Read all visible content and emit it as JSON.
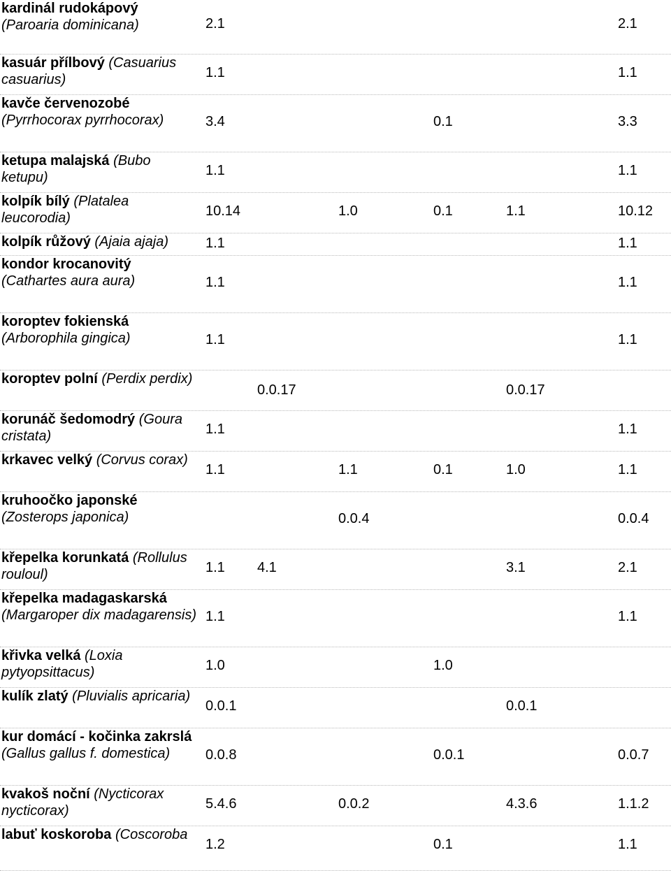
{
  "rows": [
    {
      "name_bold": [
        "kardinál",
        "rudokápový"
      ],
      "name_italic": [
        "(Paroaria",
        "dominicana)"
      ],
      "values": [
        "2.1",
        "",
        "",
        "",
        "",
        "2.1"
      ]
    },
    {
      "name_bold": [
        "kasuár přílbový"
      ],
      "name_italic": [
        "(Casuarius",
        "casuarius)"
      ],
      "values": [
        "1.1",
        "",
        "",
        "",
        "",
        "1.1"
      ]
    },
    {
      "name_bold": [
        "kavče",
        "červenozobé"
      ],
      "name_italic": [
        "(Pyrrhocorax",
        "pyrrhocorax)"
      ],
      "values": [
        "3.4",
        "",
        "",
        "0.1",
        "",
        "3.3"
      ]
    },
    {
      "name_bold": [
        "ketupa malajská"
      ],
      "name_italic": [
        "(Bubo",
        "ketupu)"
      ],
      "values": [
        "1.1",
        "",
        "",
        "",
        "",
        "1.1"
      ]
    },
    {
      "name_bold": [
        "kolpík bílý"
      ],
      "name_italic": [
        "(Platalea",
        "leucorodia)"
      ],
      "values": [
        "10.14",
        "",
        "1.0",
        "0.1",
        "1.1",
        "10.12"
      ]
    },
    {
      "name_bold": [
        "kolpík růžový"
      ],
      "name_italic": [
        "(Ajaia ajaja)"
      ],
      "values": [
        "1.1",
        "",
        "",
        "",
        "",
        "1.1"
      ]
    },
    {
      "name_bold": [
        "kondor",
        "krocanovitý"
      ],
      "name_italic": [
        "(Cathartes aura",
        "aura)"
      ],
      "values": [
        "1.1",
        "",
        "",
        "",
        "",
        "1.1"
      ]
    },
    {
      "name_bold": [
        "koroptev",
        "fokienská"
      ],
      "name_italic": [
        "(Arborophila",
        "gingica)"
      ],
      "values": [
        "1.1",
        "",
        "",
        "",
        "",
        "1.1"
      ]
    },
    {
      "name_bold": [
        "koroptev polní"
      ],
      "name_italic": [
        "(Perdix",
        "perdix)"
      ],
      "values": [
        "",
        "0.0.17",
        "",
        "",
        "0.0.17",
        ""
      ]
    },
    {
      "name_bold": [
        "korunáč šedomodrý"
      ],
      "name_italic": [
        "(Goura",
        "cristata)"
      ],
      "values": [
        "1.1",
        "",
        "",
        "",
        "",
        "1.1"
      ]
    },
    {
      "name_bold": [
        "krkavec velký"
      ],
      "name_italic": [
        "(Corvus",
        "corax)"
      ],
      "values": [
        "1.1",
        "",
        "1.1",
        "0.1",
        "1.0",
        "1.1"
      ]
    },
    {
      "name_bold": [
        "kruhoočko",
        "japonské"
      ],
      "name_italic": [
        "(Zosterops",
        "japonica)"
      ],
      "values": [
        "",
        "",
        "0.0.4",
        "",
        "",
        "0.0.4"
      ]
    },
    {
      "name_bold": [
        "křepelka",
        "korunkatá"
      ],
      "name_italic": [
        "(Rollulus rouloul)"
      ],
      "values": [
        "1.1",
        "4.1",
        "",
        "",
        "3.1",
        "2.1"
      ]
    },
    {
      "name_bold": [
        "křepelka",
        "madagaskarská"
      ],
      "name_italic": [
        "(Margaroper",
        "dix madagarensis)"
      ],
      "values": [
        "1.1",
        "",
        "",
        "",
        "",
        "1.1"
      ]
    },
    {
      "name_bold": [
        "křivka velká"
      ],
      "name_italic": [
        "(Loxia",
        "pytyopsittacus)"
      ],
      "values": [
        "1.0",
        "",
        "",
        "1.0",
        "",
        ""
      ]
    },
    {
      "name_bold": [
        "kulík zlatý"
      ],
      "name_italic": [
        "(Pluvialis",
        "apricaria)"
      ],
      "values": [
        "0.0.1",
        "",
        "",
        "",
        "0.0.1",
        ""
      ]
    },
    {
      "name_bold": [
        "kur domácí - kočinka",
        "zakrslá"
      ],
      "name_italic": [
        "(Gallus gallus f.",
        "domestica)"
      ],
      "values": [
        "0.0.8",
        "",
        "",
        "0.0.1",
        "",
        "0.0.7"
      ]
    },
    {
      "name_bold": [
        "kvakoš noční"
      ],
      "name_italic": [
        "(Nycticorax",
        "nycticorax)"
      ],
      "values": [
        "5.4.6",
        "",
        "0.0.2",
        "",
        "4.3.6",
        "1.1.2"
      ]
    },
    {
      "name_bold": [
        "labuť",
        "koskoroba"
      ],
      "name_italic": [
        "(Coscoroba"
      ],
      "values": [
        "1.2",
        "",
        "",
        "0.1",
        "",
        "1.1"
      ]
    }
  ]
}
